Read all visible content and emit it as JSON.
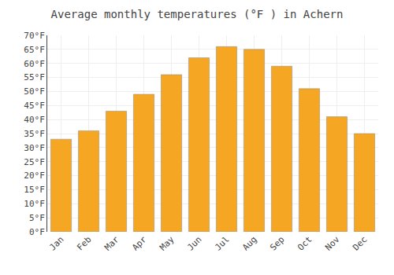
{
  "chart_data": {
    "type": "bar",
    "title": "Average monthly temperatures (°F ) in Achern",
    "categories": [
      "Jan",
      "Feb",
      "Mar",
      "Apr",
      "May",
      "Jun",
      "Jul",
      "Aug",
      "Sep",
      "Oct",
      "Nov",
      "Dec"
    ],
    "values": [
      33,
      36,
      43,
      49,
      56,
      62,
      66,
      65,
      59,
      51,
      41,
      35
    ],
    "color": "#F5A623",
    "ylim": [
      0,
      70
    ],
    "yticks": [
      {
        "value": 0,
        "label": "0°F"
      },
      {
        "value": 5,
        "label": "5°F"
      },
      {
        "value": 10,
        "label": "10°F"
      },
      {
        "value": 15,
        "label": "15°F"
      },
      {
        "value": 20,
        "label": "20°F"
      },
      {
        "value": 25,
        "label": "25°F"
      },
      {
        "value": 30,
        "label": "30°F"
      },
      {
        "value": 35,
        "label": "35°F"
      },
      {
        "value": 40,
        "label": "40°F"
      },
      {
        "value": 45,
        "label": "45°F"
      },
      {
        "value": 50,
        "label": "50°F"
      },
      {
        "value": 55,
        "label": "55°F"
      },
      {
        "value": 60,
        "label": "60°F"
      },
      {
        "value": 65,
        "label": "65°F"
      },
      {
        "value": 70,
        "label": "70°F"
      }
    ],
    "grid": true
  }
}
